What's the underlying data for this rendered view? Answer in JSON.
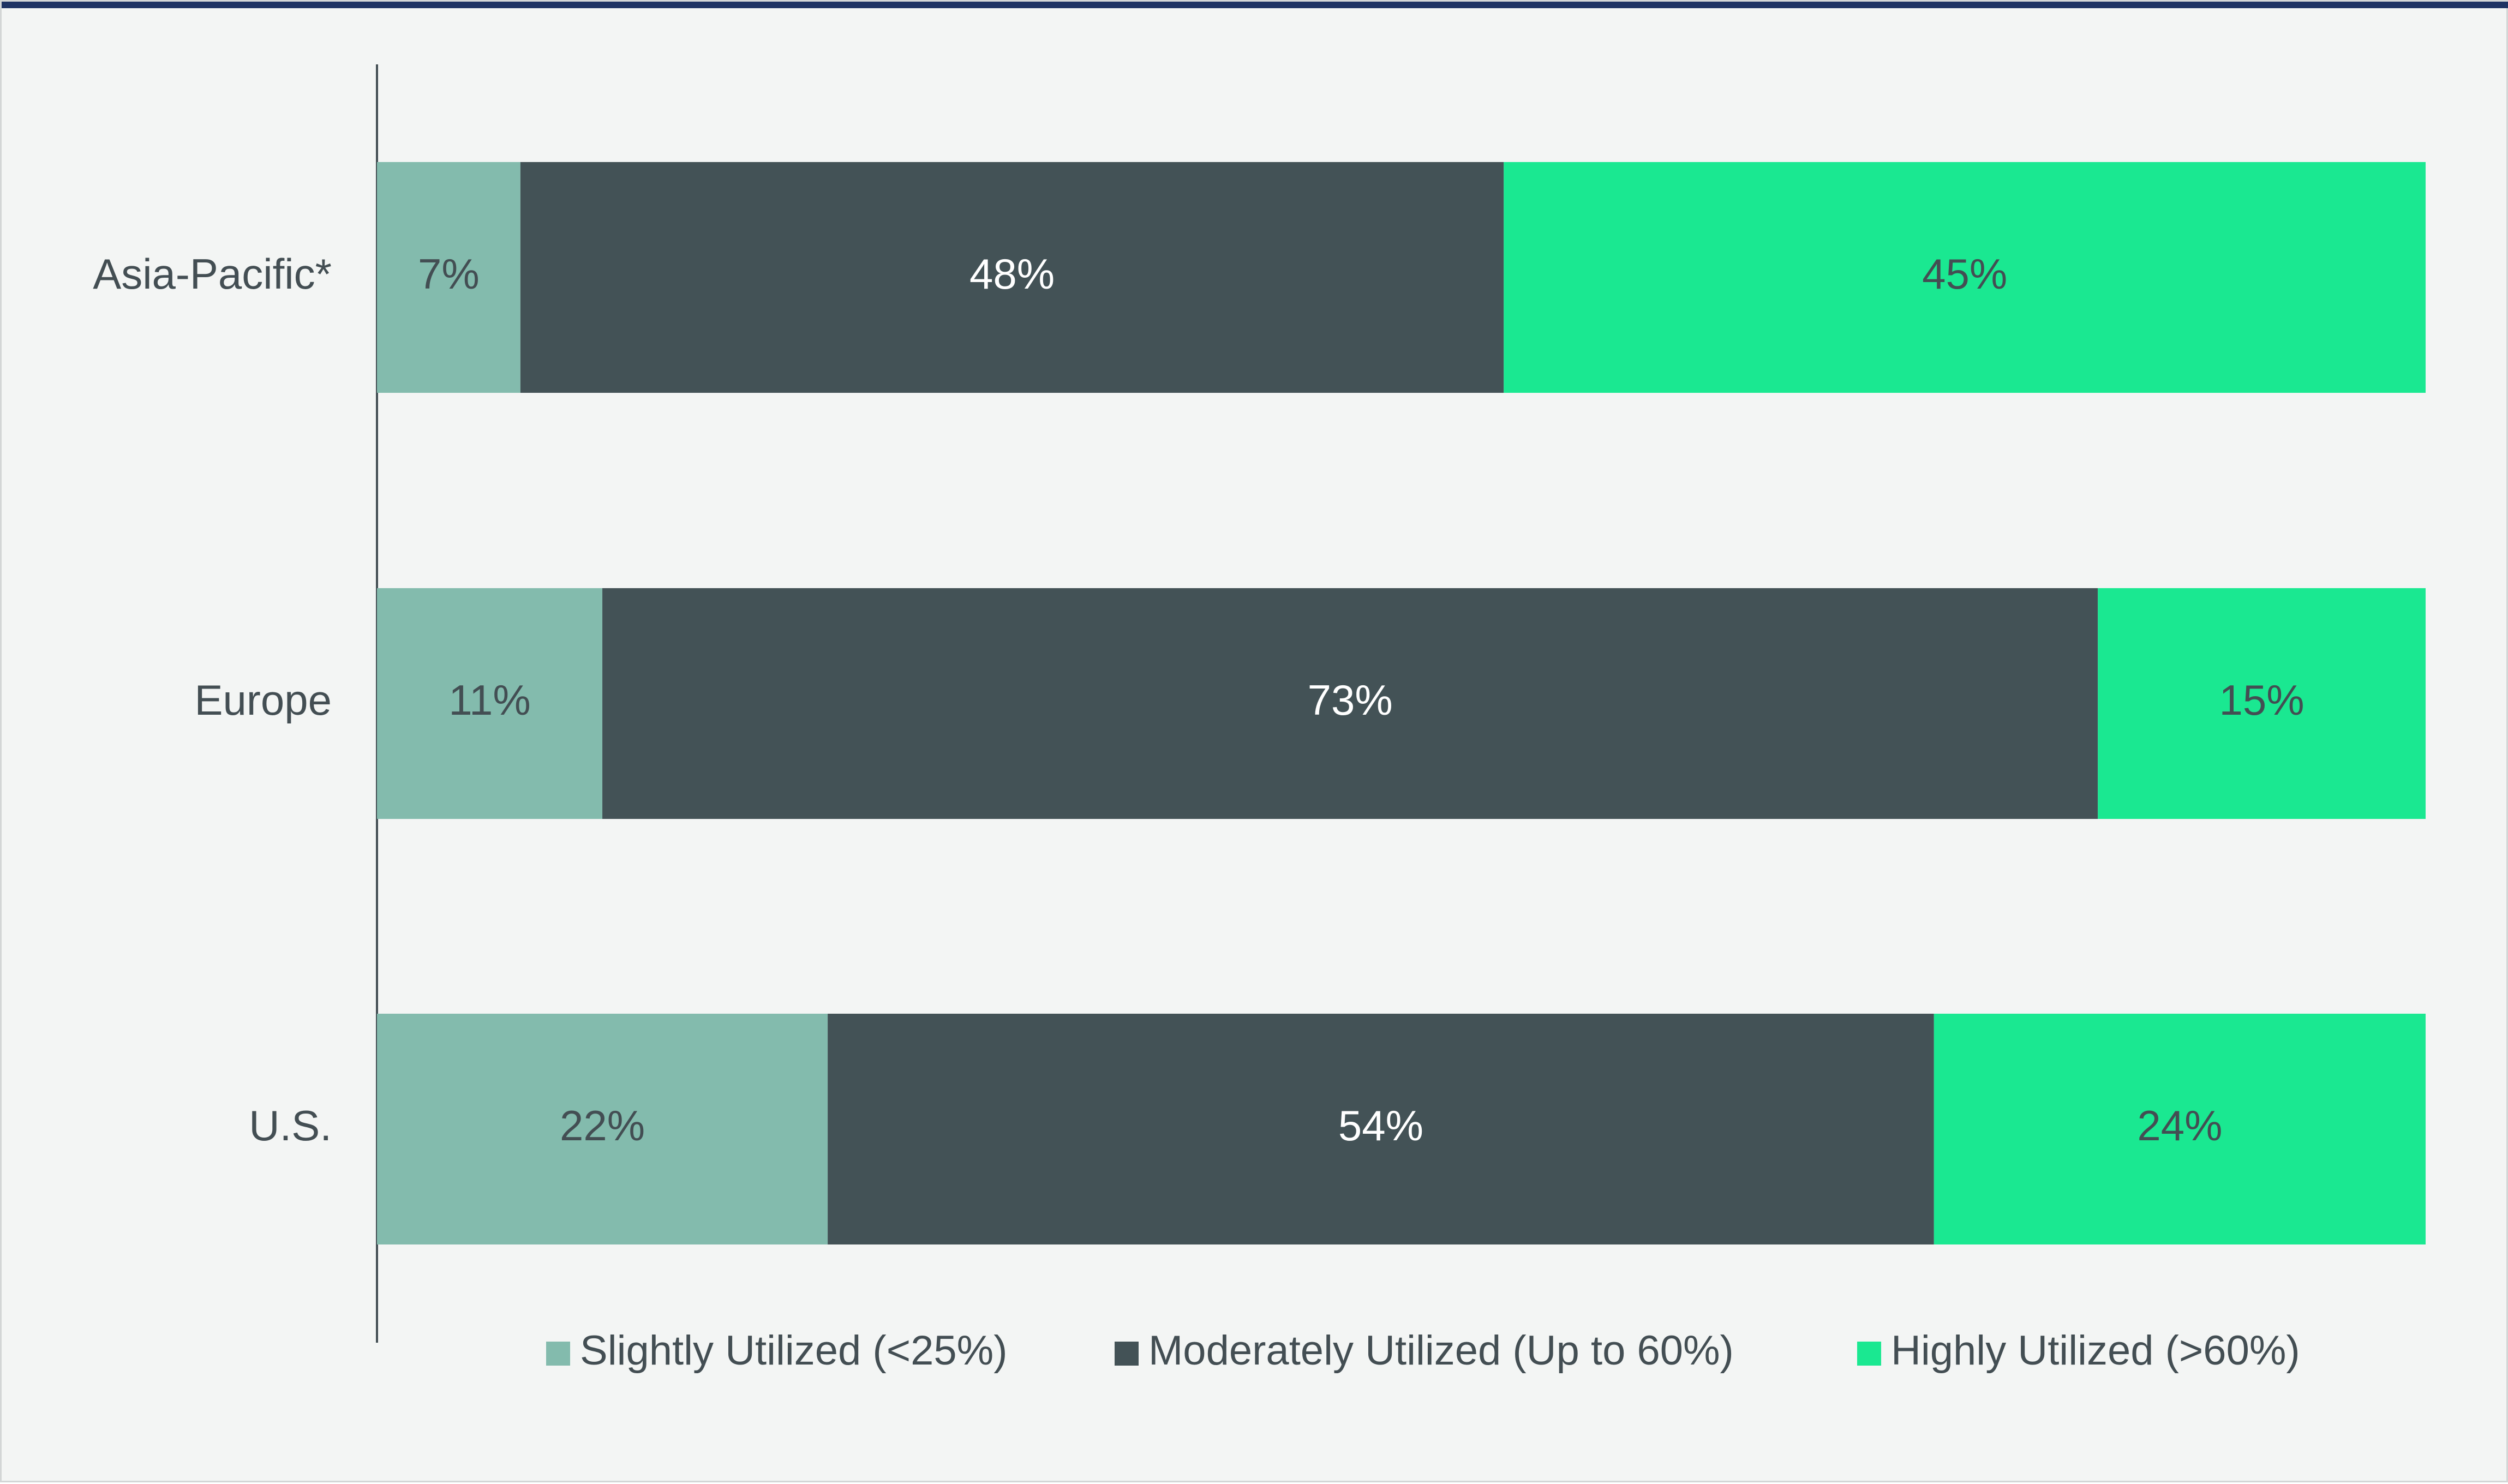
{
  "chart_data": {
    "type": "bar",
    "orientation": "horizontal",
    "stacked": true,
    "categories": [
      "Asia-Pacific*",
      "Europe",
      "U.S."
    ],
    "series": [
      {
        "name": "Slightly Utilized (<25%)",
        "values": [
          7,
          11,
          22
        ],
        "labels": [
          "7%",
          "11%",
          "22%"
        ],
        "color": "#83bbad",
        "text_color": "#434e53"
      },
      {
        "name": "Moderately Utilized (Up to 60%)",
        "values": [
          48,
          73,
          54
        ],
        "labels": [
          "48%",
          "73%",
          "54%"
        ],
        "color": "#435256",
        "text_color": "#ffffff"
      },
      {
        "name": "Highly Utilized (>60%)",
        "values": [
          45,
          15,
          24
        ],
        "labels": [
          "45%",
          "15%",
          "24%"
        ],
        "color": "#1ae891",
        "text_color": "#434e53"
      }
    ],
    "xlim": [
      0,
      100
    ],
    "grid": false,
    "legend_position": "bottom"
  },
  "colors": {
    "background": "#f3f5f4",
    "top_rule": "#1e3363",
    "axis": "#434e53"
  }
}
